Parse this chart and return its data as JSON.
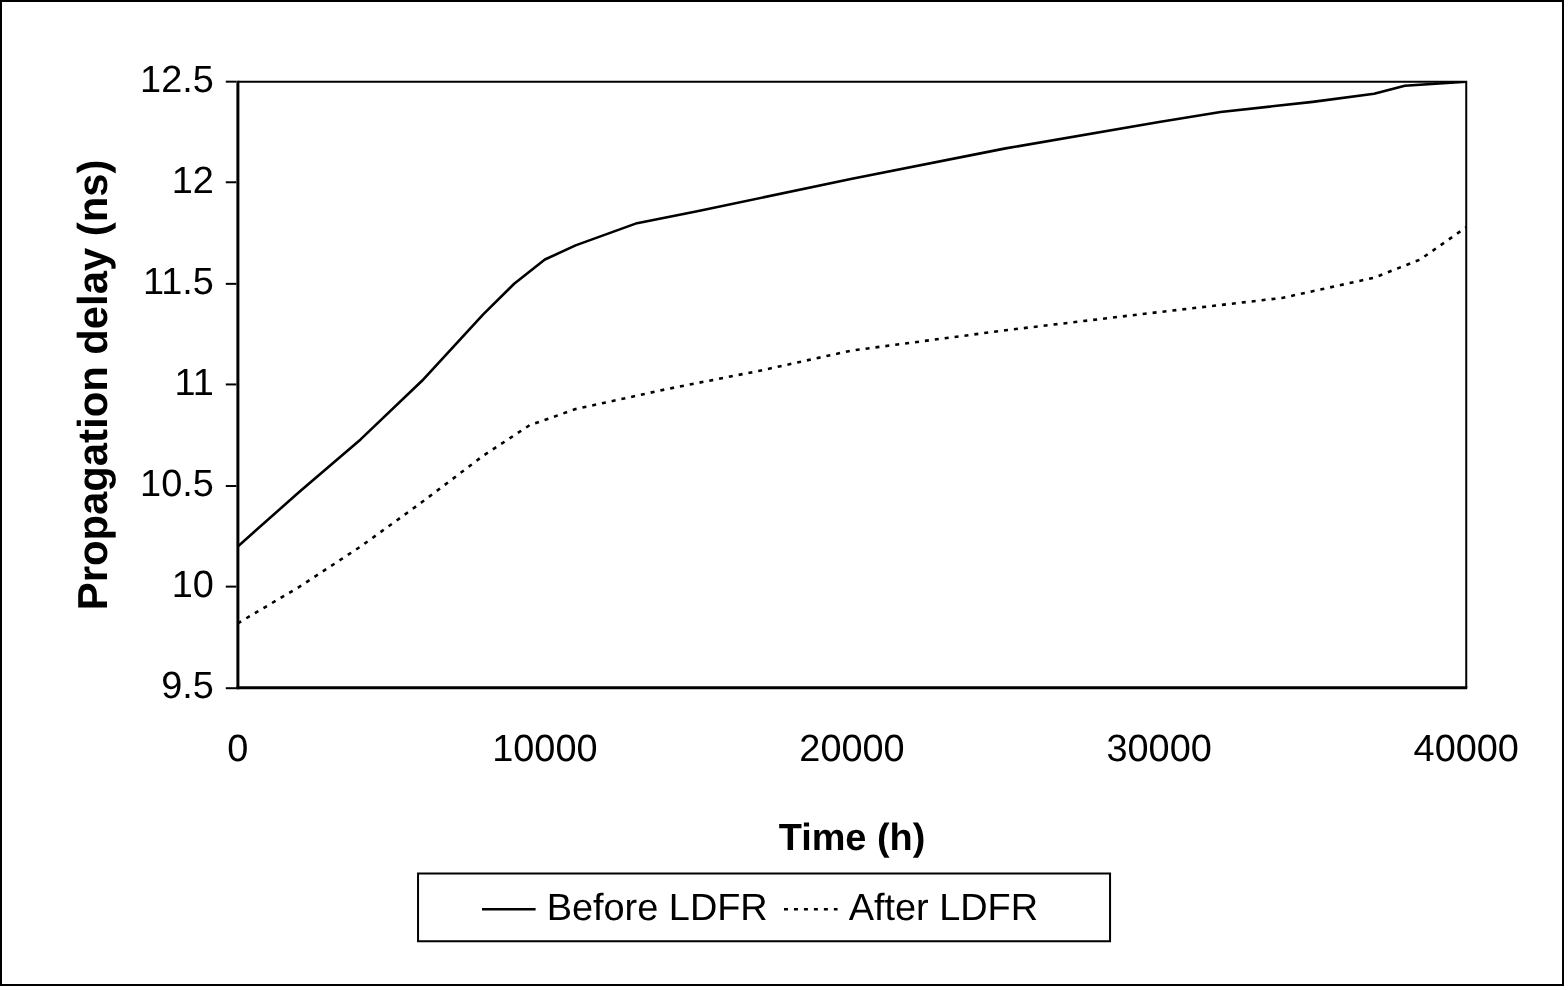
{
  "chart_data": {
    "type": "line",
    "xlabel": "Time (h)",
    "ylabel": "Propagation delay (ns)",
    "xlim": [
      0,
      40000
    ],
    "xticks": [
      0,
      10000,
      20000,
      30000,
      40000
    ],
    "ylim": [
      9.5,
      12.5
    ],
    "yticks": [
      9.5,
      10,
      10.5,
      11,
      11.5,
      12,
      12.5
    ],
    "grid": false,
    "legend": "bottom",
    "marker": "none",
    "series": [
      {
        "name": "Before LDFR",
        "color": "#000000",
        "line_style": "solid",
        "x": [
          0,
          2000,
          4000,
          6000,
          8000,
          9000,
          10000,
          11000,
          13000,
          15000,
          20000,
          25000,
          30000,
          32000,
          35000,
          37000,
          38000,
          40000
        ],
        "values": [
          10.2,
          10.47,
          10.73,
          11.02,
          11.35,
          11.5,
          11.62,
          11.69,
          11.8,
          11.86,
          12.02,
          12.17,
          12.3,
          12.35,
          12.4,
          12.44,
          12.48,
          12.5
        ]
      },
      {
        "name": "After LDFR",
        "color": "#000000",
        "line_style": "dotted",
        "x": [
          0,
          2000,
          4000,
          6000,
          8000,
          9500,
          11000,
          14000,
          17000,
          20000,
          25000,
          30000,
          34000,
          37000,
          38500,
          40000
        ],
        "values": [
          9.82,
          10.0,
          10.2,
          10.42,
          10.65,
          10.8,
          10.88,
          10.98,
          11.07,
          11.17,
          11.27,
          11.36,
          11.43,
          11.53,
          11.62,
          11.78
        ]
      }
    ]
  }
}
